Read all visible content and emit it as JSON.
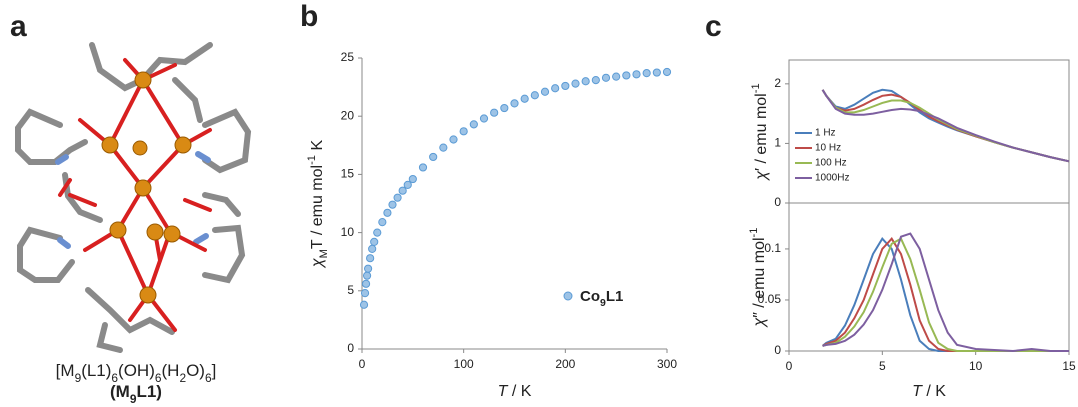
{
  "panel_a": {
    "panel_label": "a",
    "formula": "[M9(L1)6(OH)6(H2O)6]",
    "short_name": "(M9L1)"
  },
  "chart_data": [
    {
      "type": "scatter",
      "panel_label": "b",
      "x_label": "T / K",
      "y_label": "χMT / emu mol-1 K",
      "xlim": [
        0,
        300
      ],
      "xticks": [
        0,
        100,
        200,
        300
      ],
      "ylim": [
        0,
        25
      ],
      "yticks": [
        0,
        5,
        10,
        15,
        20,
        25
      ],
      "legend": "lower right",
      "series": [
        {
          "name": "Co9L1",
          "color": "#9dc3e6",
          "x": [
            2,
            3,
            4,
            5,
            6,
            8,
            10,
            12,
            15,
            20,
            25,
            30,
            35,
            40,
            45,
            50,
            60,
            70,
            80,
            90,
            100,
            110,
            120,
            130,
            140,
            150,
            160,
            170,
            180,
            190,
            200,
            210,
            220,
            230,
            240,
            250,
            260,
            270,
            280,
            290,
            300
          ],
          "values": [
            3.8,
            4.8,
            5.6,
            6.3,
            6.9,
            7.8,
            8.6,
            9.2,
            10,
            10.9,
            11.7,
            12.4,
            13,
            13.6,
            14.1,
            14.6,
            15.6,
            16.5,
            17.3,
            18,
            18.7,
            19.3,
            19.8,
            20.3,
            20.7,
            21.1,
            21.5,
            21.8,
            22.1,
            22.4,
            22.6,
            22.8,
            23,
            23.1,
            23.3,
            23.4,
            23.5,
            23.6,
            23.7,
            23.75,
            23.8
          ]
        }
      ]
    },
    {
      "type": "line",
      "panel_label": "c",
      "y_label": "χ′ / emu mol-1",
      "xlim": [
        0,
        15
      ],
      "ylim": [
        0,
        2.4
      ],
      "yticks": [
        0,
        1,
        2
      ],
      "legend": "left",
      "x": [
        1.8,
        2,
        2.5,
        3,
        3.5,
        4,
        4.5,
        5,
        5.5,
        6,
        6.5,
        7,
        7.5,
        8,
        8.5,
        9,
        10,
        11,
        12,
        13,
        14,
        15
      ],
      "series": [
        {
          "name": "1 Hz",
          "color": "#4a7ebb",
          "values": [
            1.9,
            1.8,
            1.62,
            1.58,
            1.65,
            1.75,
            1.85,
            1.9,
            1.88,
            1.78,
            1.65,
            1.52,
            1.42,
            1.35,
            1.28,
            1.22,
            1.12,
            1.02,
            0.93,
            0.85,
            0.77,
            0.7
          ]
        },
        {
          "name": "10 Hz",
          "color": "#be4b48",
          "values": [
            1.9,
            1.8,
            1.6,
            1.55,
            1.58,
            1.65,
            1.73,
            1.8,
            1.82,
            1.78,
            1.68,
            1.56,
            1.45,
            1.37,
            1.3,
            1.23,
            1.12,
            1.02,
            0.93,
            0.85,
            0.77,
            0.7
          ]
        },
        {
          "name": "100 Hz",
          "color": "#98b954",
          "values": [
            1.9,
            1.8,
            1.6,
            1.52,
            1.52,
            1.56,
            1.62,
            1.68,
            1.72,
            1.72,
            1.68,
            1.6,
            1.5,
            1.4,
            1.32,
            1.24,
            1.13,
            1.02,
            0.93,
            0.85,
            0.77,
            0.7
          ]
        },
        {
          "name": "1000Hz",
          "color": "#7d5fa0",
          "values": [
            1.9,
            1.8,
            1.58,
            1.5,
            1.48,
            1.48,
            1.5,
            1.53,
            1.56,
            1.58,
            1.57,
            1.54,
            1.48,
            1.42,
            1.34,
            1.26,
            1.14,
            1.03,
            0.93,
            0.85,
            0.77,
            0.7
          ]
        }
      ]
    },
    {
      "type": "line",
      "x_label": "T / K",
      "y_label": "χ″ / emu mol-1",
      "xlim": [
        0,
        15
      ],
      "xticks": [
        0,
        5,
        10,
        15
      ],
      "ylim": [
        0,
        0.145
      ],
      "yticks": [
        0,
        0.05,
        0.1
      ],
      "x": [
        1.8,
        2,
        2.5,
        3,
        3.5,
        4,
        4.5,
        5,
        5.5,
        6,
        6.5,
        7,
        7.5,
        8,
        8.5,
        9,
        10,
        11,
        12,
        13,
        14,
        15
      ],
      "series": [
        {
          "color": "#4a7ebb",
          "values": [
            0.005,
            0.008,
            0.012,
            0.025,
            0.045,
            0.07,
            0.095,
            0.11,
            0.1,
            0.07,
            0.035,
            0.01,
            0.002,
            0,
            0,
            0,
            0,
            0,
            0,
            0,
            0,
            0
          ]
        },
        {
          "color": "#be4b48",
          "values": [
            0.005,
            0.007,
            0.01,
            0.018,
            0.032,
            0.05,
            0.075,
            0.1,
            0.11,
            0.095,
            0.065,
            0.03,
            0.01,
            0.002,
            0,
            0,
            0,
            0,
            0,
            0,
            0,
            0
          ]
        },
        {
          "color": "#98b954",
          "values": [
            0.005,
            0.006,
            0.008,
            0.014,
            0.024,
            0.038,
            0.058,
            0.082,
            0.105,
            0.11,
            0.09,
            0.06,
            0.028,
            0.008,
            0.002,
            0,
            0,
            0,
            0,
            0,
            0,
            0
          ]
        },
        {
          "color": "#7d5fa0",
          "values": [
            0.005,
            0.006,
            0.007,
            0.01,
            0.016,
            0.026,
            0.04,
            0.06,
            0.085,
            0.112,
            0.115,
            0.1,
            0.07,
            0.04,
            0.018,
            0.006,
            0.002,
            0.001,
            0,
            0.002,
            0,
            0
          ]
        }
      ]
    }
  ]
}
